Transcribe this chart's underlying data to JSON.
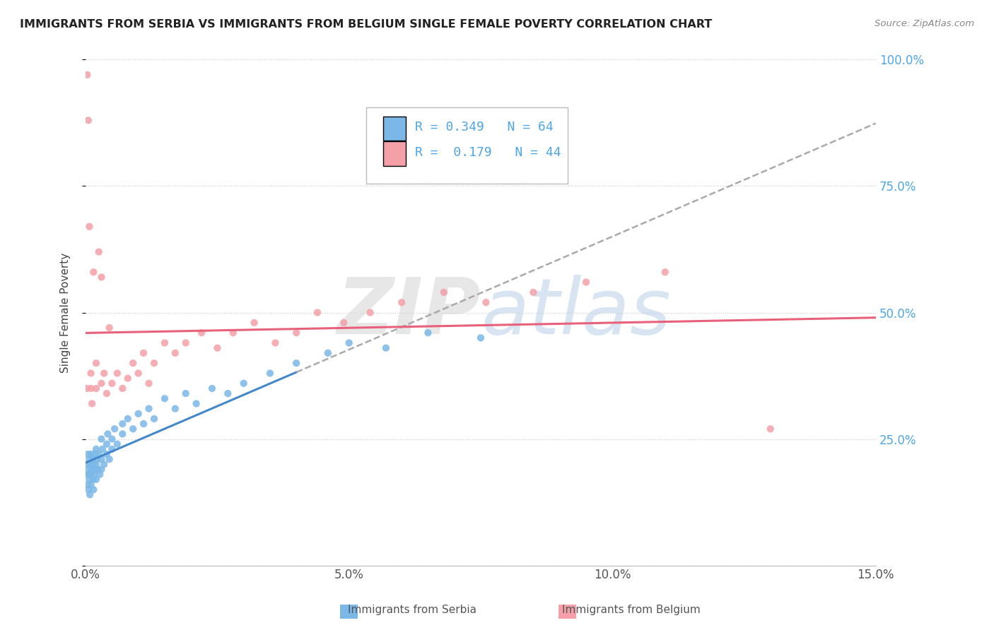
{
  "title": "IMMIGRANTS FROM SERBIA VS IMMIGRANTS FROM BELGIUM SINGLE FEMALE POVERTY CORRELATION CHART",
  "source": "Source: ZipAtlas.com",
  "ylabel": "Single Female Poverty",
  "xlim": [
    0.0,
    0.15
  ],
  "ylim": [
    0.0,
    1.0
  ],
  "xtick_vals": [
    0.0,
    0.05,
    0.1,
    0.15
  ],
  "xtick_labels": [
    "0.0%",
    "5.0%",
    "10.0%",
    "15.0%"
  ],
  "ytick_vals": [
    0.0,
    0.25,
    0.5,
    0.75,
    1.0
  ],
  "ytick_labels_right": [
    "",
    "25.0%",
    "50.0%",
    "75.0%",
    "100.0%"
  ],
  "series1_color": "#7bb8e8",
  "series2_color": "#f5a0a8",
  "trendline1_color": "#4488cc",
  "trendline2_color": "#e8607a",
  "series1_label": "Immigrants from Serbia",
  "series2_label": "Immigrants from Belgium",
  "R1": 0.349,
  "N1": 64,
  "R2": 0.179,
  "N2": 44,
  "legend_R1_color": "#4da6e8",
  "legend_R2_color": "#4da6e8",
  "serbia_x": [
    0.0002,
    0.0003,
    0.0004,
    0.0004,
    0.0005,
    0.0005,
    0.0006,
    0.0007,
    0.0007,
    0.0008,
    0.0009,
    0.001,
    0.001,
    0.001,
    0.0012,
    0.0013,
    0.0014,
    0.0015,
    0.0015,
    0.0016,
    0.0017,
    0.0018,
    0.002,
    0.002,
    0.002,
    0.0022,
    0.0023,
    0.0025,
    0.0027,
    0.003,
    0.003,
    0.003,
    0.0032,
    0.0035,
    0.004,
    0.004,
    0.0042,
    0.0045,
    0.005,
    0.005,
    0.0055,
    0.006,
    0.007,
    0.007,
    0.008,
    0.009,
    0.01,
    0.011,
    0.012,
    0.013,
    0.015,
    0.017,
    0.019,
    0.021,
    0.024,
    0.027,
    0.03,
    0.035,
    0.04,
    0.046,
    0.05,
    0.057,
    0.065,
    0.075
  ],
  "serbia_y": [
    0.18,
    0.2,
    0.16,
    0.22,
    0.19,
    0.15,
    0.18,
    0.17,
    0.21,
    0.14,
    0.2,
    0.18,
    0.22,
    0.16,
    0.19,
    0.21,
    0.17,
    0.2,
    0.15,
    0.18,
    0.22,
    0.19,
    0.2,
    0.17,
    0.23,
    0.21,
    0.19,
    0.22,
    0.18,
    0.21,
    0.25,
    0.19,
    0.23,
    0.2,
    0.24,
    0.22,
    0.26,
    0.21,
    0.25,
    0.23,
    0.27,
    0.24,
    0.28,
    0.26,
    0.29,
    0.27,
    0.3,
    0.28,
    0.31,
    0.29,
    0.33,
    0.31,
    0.34,
    0.32,
    0.35,
    0.34,
    0.36,
    0.38,
    0.4,
    0.42,
    0.44,
    0.43,
    0.46,
    0.45
  ],
  "belgium_x": [
    0.0002,
    0.0003,
    0.0005,
    0.0007,
    0.001,
    0.001,
    0.0012,
    0.0015,
    0.002,
    0.002,
    0.0025,
    0.003,
    0.003,
    0.0035,
    0.004,
    0.0045,
    0.005,
    0.006,
    0.007,
    0.008,
    0.009,
    0.01,
    0.011,
    0.012,
    0.013,
    0.015,
    0.017,
    0.019,
    0.022,
    0.025,
    0.028,
    0.032,
    0.036,
    0.04,
    0.044,
    0.049,
    0.054,
    0.06,
    0.068,
    0.076,
    0.085,
    0.095,
    0.11,
    0.13
  ],
  "belgium_y": [
    0.35,
    0.97,
    0.88,
    0.67,
    0.35,
    0.38,
    0.32,
    0.58,
    0.35,
    0.4,
    0.62,
    0.36,
    0.57,
    0.38,
    0.34,
    0.47,
    0.36,
    0.38,
    0.35,
    0.37,
    0.4,
    0.38,
    0.42,
    0.36,
    0.4,
    0.44,
    0.42,
    0.44,
    0.46,
    0.43,
    0.46,
    0.48,
    0.44,
    0.46,
    0.5,
    0.48,
    0.5,
    0.52,
    0.54,
    0.52,
    0.54,
    0.56,
    0.58,
    0.27
  ]
}
